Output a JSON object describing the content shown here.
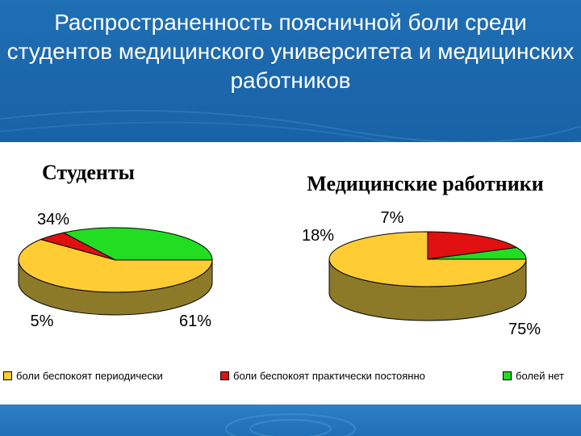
{
  "slide": {
    "title": "Распространенность поясничной боли среди студентов медицинского университета и медицинских работников"
  },
  "colors": {
    "header": "#1f6fb5",
    "yellow": "#ffcc33",
    "red": "#e01010",
    "green": "#22dd22"
  },
  "legend": {
    "items": [
      {
        "label": "боли беспокоят периодически",
        "color": "#ffcc33"
      },
      {
        "label": "боли беспокоят практически постоянно",
        "color": "#e01010"
      },
      {
        "label": "болей нет",
        "color": "#22dd22"
      }
    ]
  },
  "chart_data": [
    {
      "type": "pie",
      "title": "Студенты",
      "categories": [
        "боли беспокоят периодически",
        "боли беспокоят практически постоянно",
        "болей нет"
      ],
      "values": [
        61,
        5,
        34
      ],
      "labels": [
        "61%",
        "5%",
        "34%"
      ],
      "legend": "bottom"
    },
    {
      "type": "pie",
      "title": "Медицинские работники",
      "categories": [
        "боли беспокоят периодически",
        "боли беспокоят практически постоянно",
        "болей нет"
      ],
      "values": [
        75,
        18,
        7
      ],
      "labels": [
        "75%",
        "18%",
        "7%"
      ],
      "legend": "bottom"
    }
  ]
}
